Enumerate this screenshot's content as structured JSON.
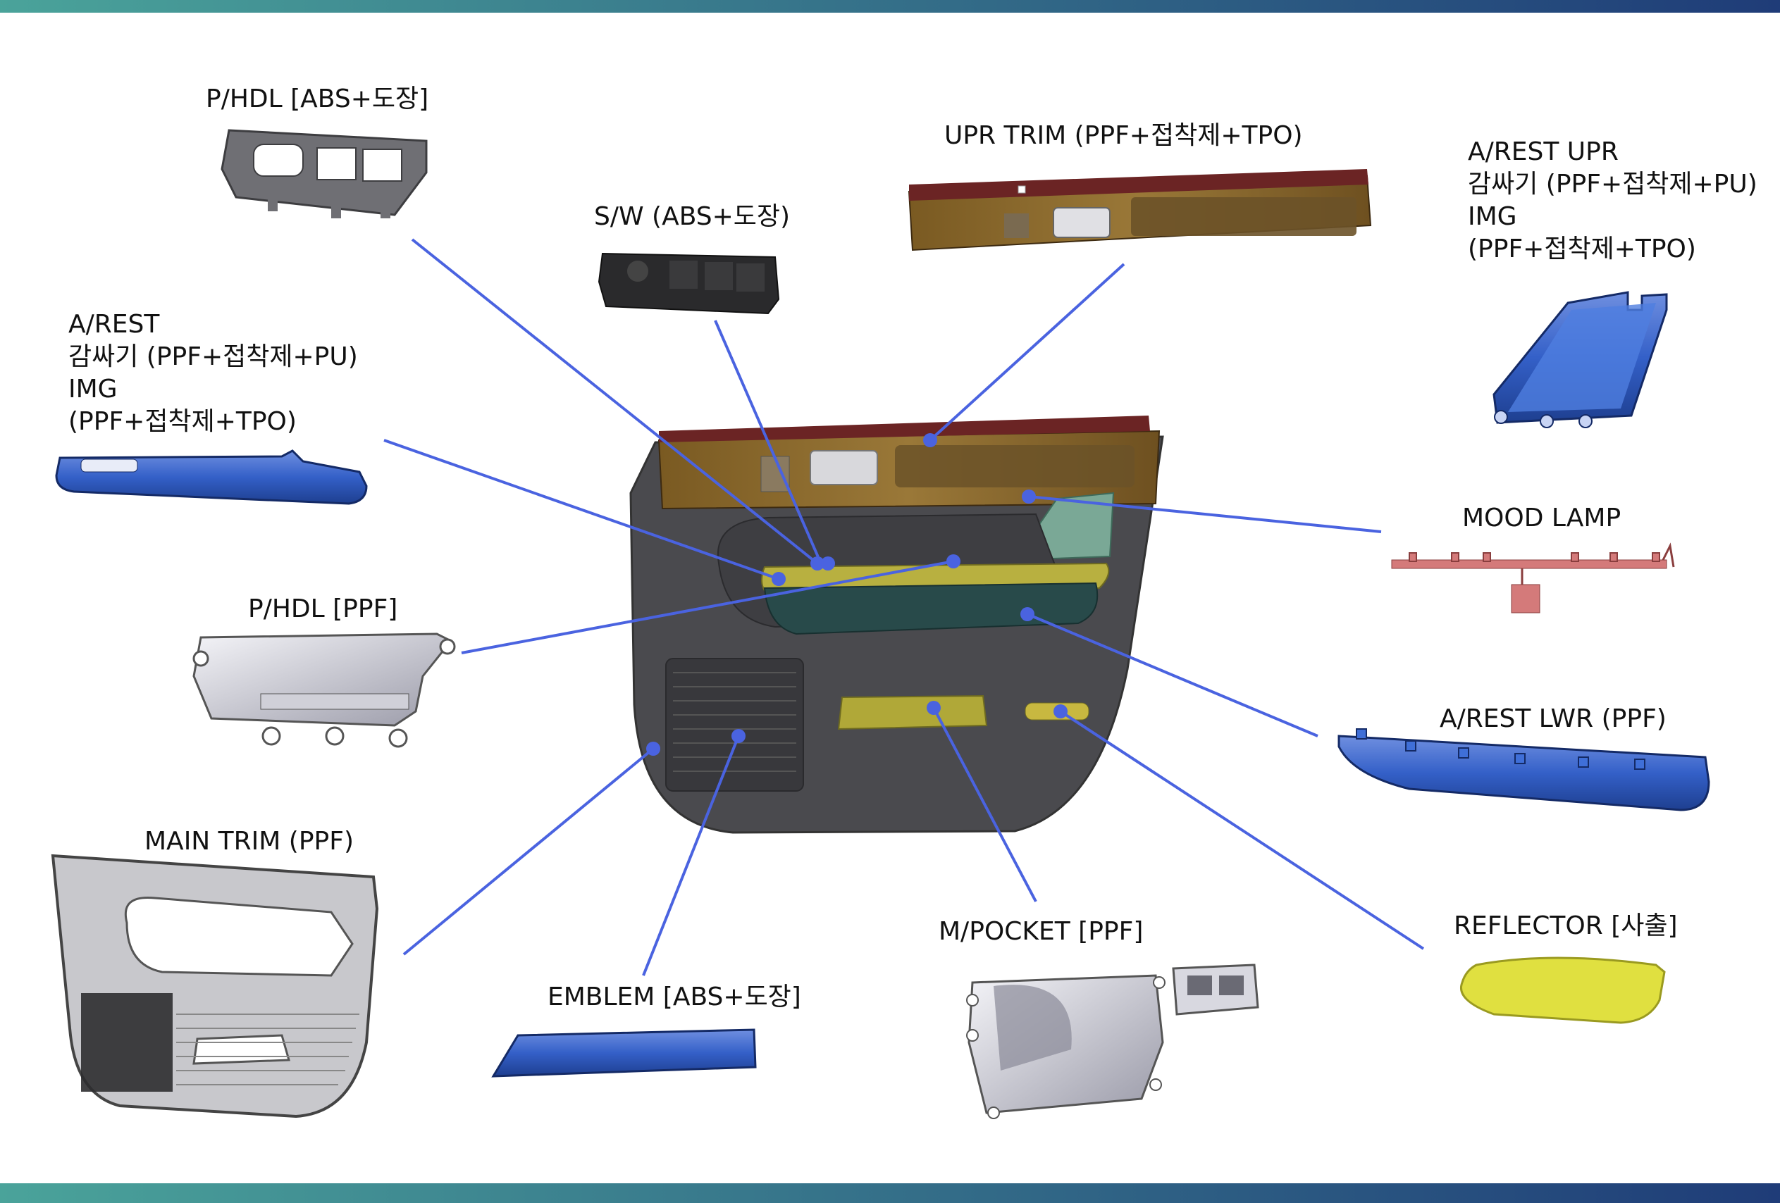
{
  "colors": {
    "band_gradient_start": "#4aa39a",
    "band_gradient_end": "#1f3c78",
    "leader_line": "#4a63e0",
    "part_blue": "#2f5fc8",
    "part_yellow": "#e0e040",
    "part_gray": "#6f6f74",
    "trim_wood": "#8a6a2c",
    "trim_maroon": "#6b2424",
    "panel_dark": "#4a4a4e",
    "lamp_pink": "#d47a7a"
  },
  "labels": {
    "phdl_abs": "P/HDL [ABS+도장]",
    "sw": "S/W (ABS+도장)",
    "upr_trim": "UPR TRIM (PPF+접착제+TPO)",
    "arest_upr": [
      "A/REST UPR",
      "감싸기 (PPF+접착제+PU)",
      "IMG",
      "(PPF+접착제+TPO)"
    ],
    "arest_left": [
      "A/REST",
      "감싸기 (PPF+접착제+PU)",
      "IMG",
      "(PPF+접착제+TPO)"
    ],
    "mood_lamp": "MOOD LAMP",
    "phdl_ppf": "P/HDL [PPF]",
    "arest_lwr": "A/REST LWR (PPF)",
    "main_trim": "MAIN TRIM (PPF)",
    "m_pocket": "M/POCKET [PPF]",
    "reflector": "REFLECTOR [사출]",
    "emblem": "EMBLEM [ABS+도장]"
  }
}
